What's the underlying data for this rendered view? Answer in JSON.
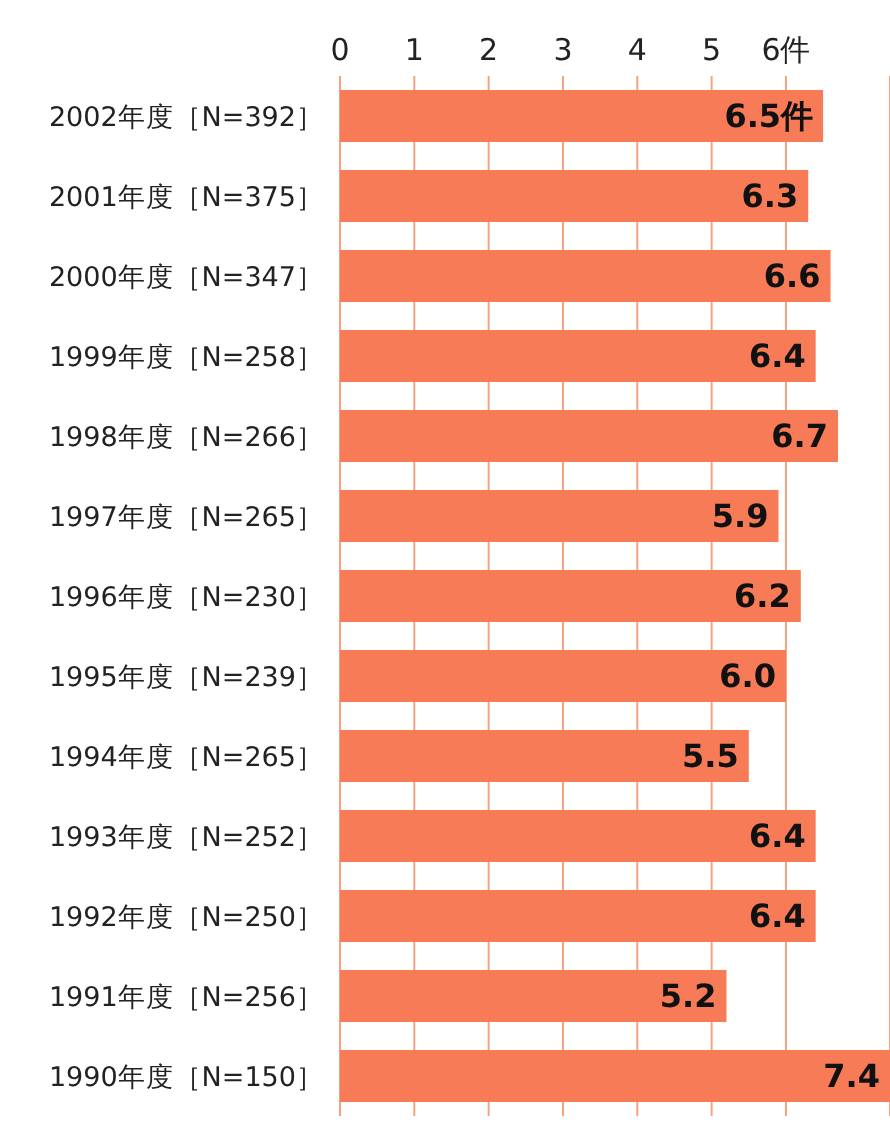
{
  "chart_data": {
    "type": "bar",
    "orientation": "horizontal",
    "categories": [
      "2002年度［N=392］",
      "2001年度［N=375］",
      "2000年度［N=347］",
      "1999年度［N=258］",
      "1998年度［N=266］",
      "1997年度［N=265］",
      "1996年度［N=230］",
      "1995年度［N=239］",
      "1994年度［N=265］",
      "1993年度［N=252］",
      "1992年度［N=250］",
      "1991年度［N=256］",
      "1990年度［N=150］"
    ],
    "values": [
      6.5,
      6.3,
      6.6,
      6.4,
      6.7,
      5.9,
      6.2,
      6.0,
      5.5,
      6.4,
      6.4,
      5.2,
      7.4
    ],
    "value_labels": [
      "6.5件",
      "6.3",
      "6.6",
      "6.4",
      "6.7",
      "5.9",
      "6.2",
      "6.0",
      "5.5",
      "6.4",
      "6.4",
      "5.2",
      "7.4"
    ],
    "color": "#f77b57",
    "xlim": [
      0,
      7.4
    ],
    "xticks": [
      0,
      1,
      2,
      3,
      4,
      5,
      {
        "value": 6,
        "label": "6件"
      }
    ],
    "grid": "x"
  }
}
